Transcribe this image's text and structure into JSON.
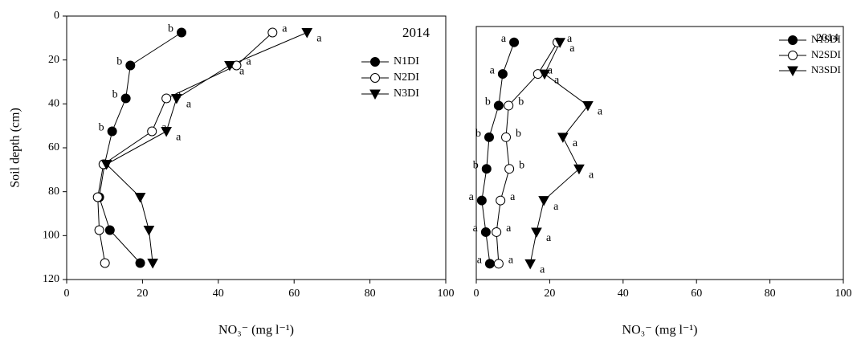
{
  "chart_data": [
    {
      "type": "line-profile",
      "title": "2014",
      "ylabel": "Soil depth (cm)",
      "xlabel": "NO₃⁻ (mg l⁻¹)",
      "depths": [
        7.5,
        22.5,
        37.5,
        52.5,
        67.5,
        82.5,
        97.5,
        112.5
      ],
      "xlim": [
        0,
        100
      ],
      "xticks": [
        0,
        20,
        40,
        60,
        80,
        100
      ],
      "ylim": [
        0,
        120
      ],
      "yticks": [
        0,
        20,
        40,
        60,
        80,
        100,
        120
      ],
      "legend": "top-right",
      "series": [
        {
          "name": "N1DI",
          "color": "#000000",
          "marker": "circle",
          "values": [
            30.3,
            16.8,
            15.6,
            12,
            10,
            8.6,
            11.4,
            19.4
          ],
          "letters": [
            "b",
            "b",
            "b",
            "b",
            null,
            null,
            null,
            null
          ]
        },
        {
          "name": "N2DI",
          "color": "#ffffff",
          "marker": "circle",
          "values": [
            54.3,
            44.8,
            26.3,
            22.5,
            9.7,
            8.2,
            8.6,
            10.1
          ],
          "letters": [
            "a",
            "a",
            "a",
            "a",
            null,
            null,
            null,
            null
          ]
        },
        {
          "name": "N3DI",
          "color": "#000000",
          "marker": "triangle-down",
          "values": [
            63.4,
            43,
            29,
            26.3,
            10.5,
            19.4,
            21.7,
            22.7
          ],
          "letters": [
            "a",
            "a",
            "a",
            "a",
            null,
            null,
            null,
            null
          ]
        }
      ]
    },
    {
      "type": "line-profile",
      "title": "2014",
      "xlabel": "NO₃⁻ (mg l⁻¹)",
      "depths": [
        7.5,
        22.5,
        37.5,
        52.5,
        67.5,
        82.5,
        97.5,
        112.5
      ],
      "xlim": [
        0,
        100
      ],
      "xticks": [
        0,
        20,
        40,
        60,
        80,
        100
      ],
      "ylim": [
        0,
        120
      ],
      "legend": "top-right",
      "series": [
        {
          "name": "N1SDI",
          "color": "#000000",
          "marker": "circle",
          "values": [
            10.3,
            7.2,
            6.1,
            3.5,
            2.8,
            1.5,
            2.6,
            3.7
          ],
          "letters": [
            "a",
            "a",
            "b",
            "b",
            "b",
            "a",
            "a",
            "a"
          ]
        },
        {
          "name": "N2SDI",
          "color": "#ffffff",
          "marker": "circle",
          "values": [
            22.1,
            16.8,
            8.8,
            8.1,
            9,
            6.6,
            5.5,
            6.1
          ],
          "letters": [
            "a",
            "a",
            "b",
            "b",
            "b",
            "a",
            "a",
            "a"
          ]
        },
        {
          "name": "N3SDI",
          "color": "#000000",
          "marker": "triangle-down",
          "values": [
            22.8,
            18.6,
            30.4,
            23.6,
            28,
            18.4,
            16.4,
            14.7
          ],
          "letters": [
            "a",
            "a",
            "a",
            "a",
            "a",
            "a",
            "a",
            "a"
          ]
        }
      ]
    }
  ]
}
